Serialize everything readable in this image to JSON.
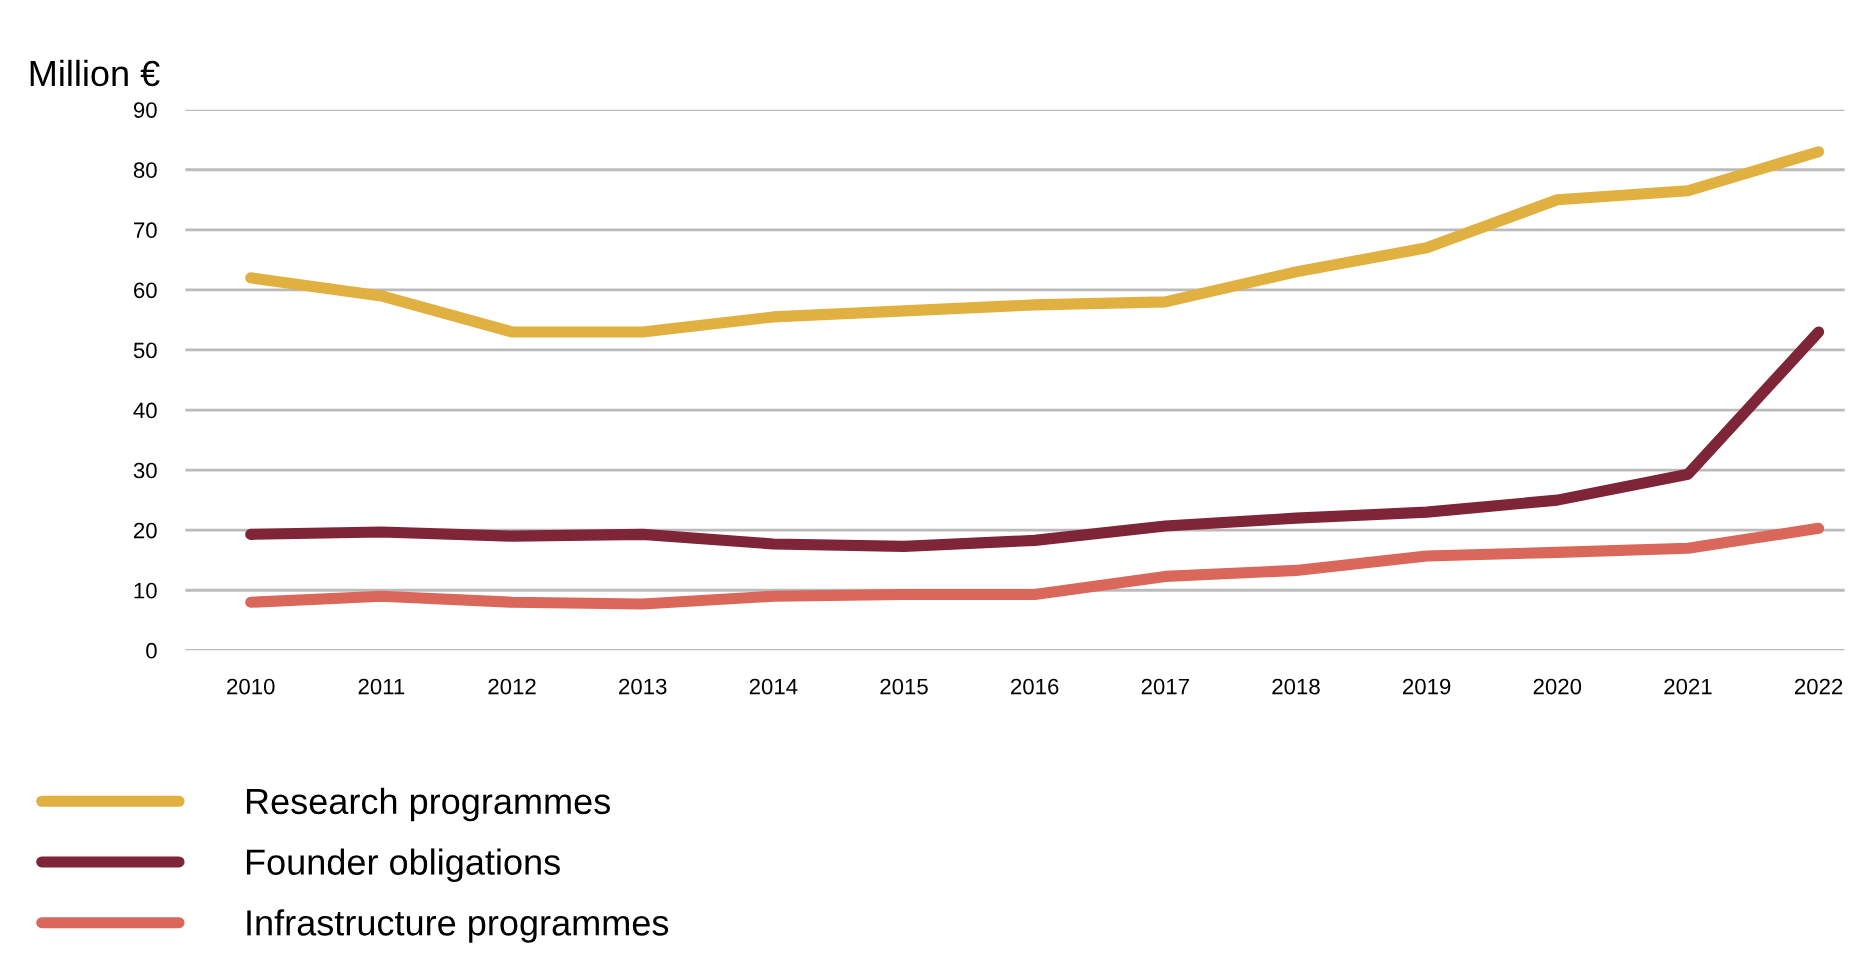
{
  "chart_data": {
    "type": "line",
    "ylabel": "Million €",
    "categories": [
      "2010",
      "2011",
      "2012",
      "2013",
      "2014",
      "2015",
      "2016",
      "2017",
      "2018",
      "2019",
      "2020",
      "2021",
      "2022"
    ],
    "series": [
      {
        "name": "Research programmes",
        "color": "#e0b040",
        "values": [
          62,
          59,
          53,
          53,
          55.5,
          56.5,
          57.5,
          58,
          63,
          67,
          75,
          76.5,
          83
        ]
      },
      {
        "name": "Founder obligations",
        "color": "#7f2538",
        "values": [
          19.3,
          19.7,
          19,
          19.3,
          17.7,
          17.3,
          18.3,
          20.7,
          22,
          23,
          25,
          29.3,
          53
        ]
      },
      {
        "name": "Infrastructure programmes",
        "color": "#d9675a",
        "values": [
          8,
          9,
          8,
          7.7,
          9,
          9.3,
          9.3,
          12.3,
          13.3,
          15.7,
          16.3,
          17,
          20.3
        ]
      }
    ],
    "ylim": [
      0,
      90
    ],
    "yticks": [
      0,
      10,
      20,
      30,
      40,
      50,
      60,
      70,
      80,
      90
    ],
    "grid": "y",
    "legend": "bottom"
  }
}
